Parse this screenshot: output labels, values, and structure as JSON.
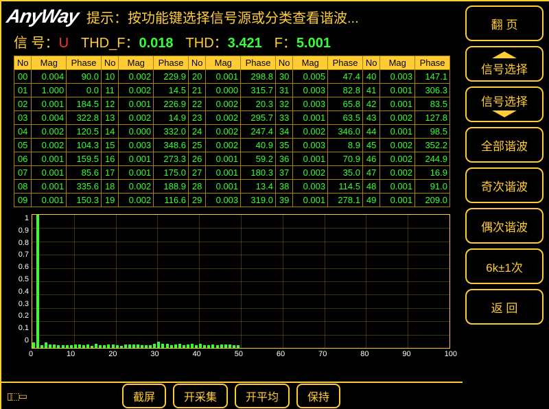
{
  "logo": "AnyWay",
  "hint": "提示：按功能键选择信号源或分类查看谐波...",
  "metrics": {
    "signal_label": "信 号：",
    "signal_value": "U",
    "thdf_label": "THD_F：",
    "thdf_value": "0.018",
    "thd_label": "THD：",
    "thd_value": "3.421",
    "f_label": "F：",
    "f_value": "5.001"
  },
  "table": {
    "headers": [
      "No",
      "Mag",
      "Phase",
      "No",
      "Mag",
      "Phase",
      "No",
      "Mag",
      "Phase",
      "No",
      "Mag",
      "Phase",
      "No",
      "Mag",
      "Phase"
    ],
    "rows": [
      [
        "00",
        "0.004",
        "90.0",
        "10",
        "0.002",
        "229.9",
        "20",
        "0.001",
        "298.8",
        "30",
        "0.005",
        "47.4",
        "40",
        "0.003",
        "147.1"
      ],
      [
        "01",
        "1.000",
        "0.0",
        "11",
        "0.002",
        "14.5",
        "21",
        "0.000",
        "315.7",
        "31",
        "0.003",
        "82.8",
        "41",
        "0.001",
        "306.3"
      ],
      [
        "02",
        "0.001",
        "184.5",
        "12",
        "0.001",
        "226.9",
        "22",
        "0.002",
        "20.3",
        "32",
        "0.003",
        "65.8",
        "42",
        "0.001",
        "83.5"
      ],
      [
        "03",
        "0.004",
        "322.8",
        "13",
        "0.002",
        "14.9",
        "23",
        "0.002",
        "295.7",
        "33",
        "0.001",
        "63.5",
        "43",
        "0.002",
        "127.8"
      ],
      [
        "04",
        "0.002",
        "120.5",
        "14",
        "0.000",
        "332.0",
        "24",
        "0.002",
        "247.4",
        "34",
        "0.002",
        "346.0",
        "44",
        "0.001",
        "98.5"
      ],
      [
        "05",
        "0.002",
        "104.3",
        "15",
        "0.003",
        "348.6",
        "25",
        "0.002",
        "40.9",
        "35",
        "0.003",
        "8.9",
        "45",
        "0.002",
        "352.2"
      ],
      [
        "06",
        "0.001",
        "159.5",
        "16",
        "0.001",
        "273.3",
        "26",
        "0.001",
        "59.2",
        "36",
        "0.001",
        "70.9",
        "46",
        "0.002",
        "244.9"
      ],
      [
        "07",
        "0.001",
        "85.6",
        "17",
        "0.001",
        "175.0",
        "27",
        "0.001",
        "180.3",
        "37",
        "0.002",
        "35.0",
        "47",
        "0.002",
        "16.9"
      ],
      [
        "08",
        "0.001",
        "335.6",
        "18",
        "0.002",
        "188.9",
        "28",
        "0.001",
        "13.4",
        "38",
        "0.003",
        "114.5",
        "48",
        "0.001",
        "91.0"
      ],
      [
        "09",
        "0.001",
        "150.3",
        "19",
        "0.002",
        "116.6",
        "29",
        "0.003",
        "319.0",
        "39",
        "0.001",
        "278.1",
        "49",
        "0.001",
        "209.0"
      ]
    ]
  },
  "chart": {
    "type": "bar",
    "ylim": [
      0,
      1
    ],
    "yticks": [
      "1",
      "0.9",
      "0.8",
      "0.7",
      "0.6",
      "0.5",
      "0.4",
      "0.3",
      "0.2",
      "0.1",
      "0"
    ],
    "xlim": [
      0,
      100
    ],
    "xticks": [
      "0",
      "10",
      "20",
      "30",
      "40",
      "50",
      "60",
      "70",
      "80",
      "90",
      "100"
    ],
    "bar_color": "#33ff33",
    "grid_color": "#a68400",
    "background": "#000000",
    "series": [
      {
        "x": 0,
        "y": 0.004
      },
      {
        "x": 1,
        "y": 1.0
      },
      {
        "x": 2,
        "y": 0.001
      },
      {
        "x": 3,
        "y": 0.004
      },
      {
        "x": 4,
        "y": 0.002
      },
      {
        "x": 5,
        "y": 0.002
      },
      {
        "x": 6,
        "y": 0.001
      },
      {
        "x": 7,
        "y": 0.001
      },
      {
        "x": 8,
        "y": 0.001
      },
      {
        "x": 9,
        "y": 0.001
      },
      {
        "x": 10,
        "y": 0.002
      },
      {
        "x": 11,
        "y": 0.002
      },
      {
        "x": 12,
        "y": 0.001
      },
      {
        "x": 13,
        "y": 0.002
      },
      {
        "x": 14,
        "y": 0.0
      },
      {
        "x": 15,
        "y": 0.003
      },
      {
        "x": 16,
        "y": 0.001
      },
      {
        "x": 17,
        "y": 0.001
      },
      {
        "x": 18,
        "y": 0.002
      },
      {
        "x": 19,
        "y": 0.002
      },
      {
        "x": 20,
        "y": 0.001
      },
      {
        "x": 21,
        "y": 0.0
      },
      {
        "x": 22,
        "y": 0.002
      },
      {
        "x": 23,
        "y": 0.002
      },
      {
        "x": 24,
        "y": 0.002
      },
      {
        "x": 25,
        "y": 0.002
      },
      {
        "x": 26,
        "y": 0.001
      },
      {
        "x": 27,
        "y": 0.001
      },
      {
        "x": 28,
        "y": 0.001
      },
      {
        "x": 29,
        "y": 0.003
      },
      {
        "x": 30,
        "y": 0.005
      },
      {
        "x": 31,
        "y": 0.003
      },
      {
        "x": 32,
        "y": 0.003
      },
      {
        "x": 33,
        "y": 0.001
      },
      {
        "x": 34,
        "y": 0.002
      },
      {
        "x": 35,
        "y": 0.003
      },
      {
        "x": 36,
        "y": 0.001
      },
      {
        "x": 37,
        "y": 0.002
      },
      {
        "x": 38,
        "y": 0.003
      },
      {
        "x": 39,
        "y": 0.001
      },
      {
        "x": 40,
        "y": 0.003
      },
      {
        "x": 41,
        "y": 0.001
      },
      {
        "x": 42,
        "y": 0.001
      },
      {
        "x": 43,
        "y": 0.002
      },
      {
        "x": 44,
        "y": 0.001
      },
      {
        "x": 45,
        "y": 0.002
      },
      {
        "x": 46,
        "y": 0.002
      },
      {
        "x": 47,
        "y": 0.002
      },
      {
        "x": 48,
        "y": 0.001
      },
      {
        "x": 49,
        "y": 0.001
      }
    ]
  },
  "footer": {
    "buttons": [
      "截屏",
      "开采集",
      "开平均",
      "保持"
    ]
  },
  "sidebar": [
    {
      "label": "翻    页",
      "type": "plain"
    },
    {
      "label": "信号选择",
      "type": "arrow-up"
    },
    {
      "label": "信号选择",
      "type": "arrow-down"
    },
    {
      "label": "全部谐波",
      "type": "plain"
    },
    {
      "label": "奇次谐波",
      "type": "plain"
    },
    {
      "label": "偶次谐波",
      "type": "plain"
    },
    {
      "label": "6k±1次",
      "type": "plain"
    },
    {
      "label": "返    回",
      "type": "plain"
    }
  ],
  "colors": {
    "accent": "#ffcc33",
    "value": "#33ff33",
    "bg": "#000000",
    "signal": "#ff3333"
  }
}
